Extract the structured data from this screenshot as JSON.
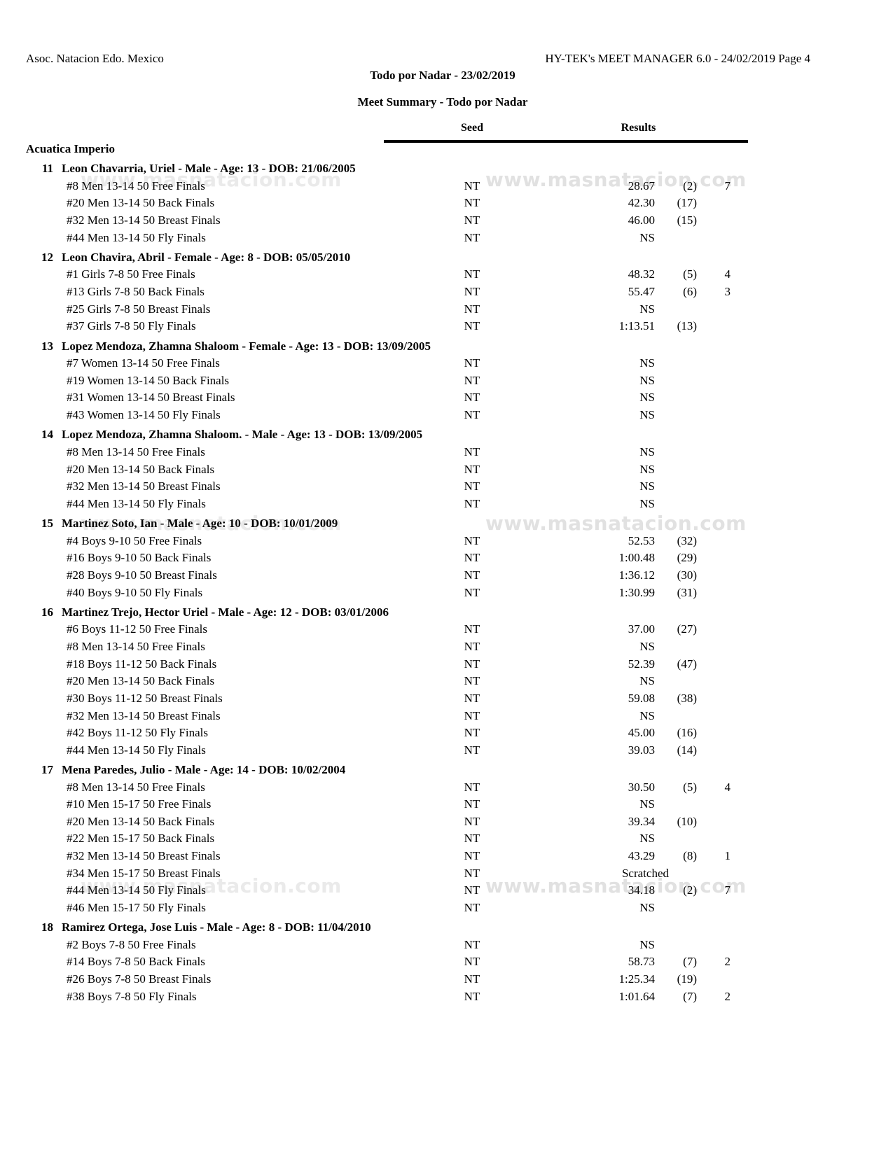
{
  "page": {
    "header_left": "Asoc. Natacion Edo. Mexico",
    "header_right": "HY-TEK's MEET MANAGER 6.0 - 24/02/2019  Page 4",
    "title": "Todo por Nadar - 23/02/2019",
    "subtitle": "Meet Summary - Todo por Nadar",
    "col_seed": "Seed",
    "col_results": "Results",
    "team": "Acuatica Imperio",
    "watermark": "www.masnatacion.com"
  },
  "swimmers": [
    {
      "num": "11",
      "name": "Leon Chavarria, Uriel - Male - Age: 13 - DOB: 21/06/2005",
      "events": [
        {
          "event": "#8 Men 13-14 50 Free Finals",
          "seed": "NT",
          "result": "28.67",
          "place": "(2)",
          "points": "7"
        },
        {
          "event": "#20 Men 13-14 50 Back Finals",
          "seed": "NT",
          "result": "42.30",
          "place": "(17)",
          "points": ""
        },
        {
          "event": "#32 Men 13-14 50 Breast Finals",
          "seed": "NT",
          "result": "46.00",
          "place": "(15)",
          "points": ""
        },
        {
          "event": "#44 Men 13-14 50 Fly Finals",
          "seed": "NT",
          "result": "NS",
          "place": "",
          "points": ""
        }
      ]
    },
    {
      "num": "12",
      "name": "Leon Chavira, Abril - Female - Age: 8 - DOB: 05/05/2010",
      "events": [
        {
          "event": "#1 Girls 7-8 50 Free Finals",
          "seed": "NT",
          "result": "48.32",
          "place": "(5)",
          "points": "4"
        },
        {
          "event": "#13 Girls 7-8 50 Back Finals",
          "seed": "NT",
          "result": "55.47",
          "place": "(6)",
          "points": "3"
        },
        {
          "event": "#25 Girls 7-8 50 Breast Finals",
          "seed": "NT",
          "result": "NS",
          "place": "",
          "points": ""
        },
        {
          "event": "#37 Girls 7-8 50 Fly Finals",
          "seed": "NT",
          "result": "1:13.51",
          "place": "(13)",
          "points": ""
        }
      ]
    },
    {
      "num": "13",
      "name": "Lopez Mendoza, Zhamna Shaloom - Female - Age: 13 - DOB: 13/09/2005",
      "events": [
        {
          "event": "#7 Women 13-14 50 Free Finals",
          "seed": "NT",
          "result": "NS",
          "place": "",
          "points": ""
        },
        {
          "event": "#19 Women 13-14 50 Back Finals",
          "seed": "NT",
          "result": "NS",
          "place": "",
          "points": ""
        },
        {
          "event": "#31 Women 13-14 50 Breast Finals",
          "seed": "NT",
          "result": "NS",
          "place": "",
          "points": ""
        },
        {
          "event": "#43 Women 13-14 50 Fly Finals",
          "seed": "NT",
          "result": "NS",
          "place": "",
          "points": ""
        }
      ]
    },
    {
      "num": "14",
      "name": "Lopez Mendoza, Zhamna Shaloom. - Male - Age: 13 - DOB: 13/09/2005",
      "events": [
        {
          "event": "#8 Men 13-14 50 Free Finals",
          "seed": "NT",
          "result": "NS",
          "place": "",
          "points": ""
        },
        {
          "event": "#20 Men 13-14 50 Back Finals",
          "seed": "NT",
          "result": "NS",
          "place": "",
          "points": ""
        },
        {
          "event": "#32 Men 13-14 50 Breast Finals",
          "seed": "NT",
          "result": "NS",
          "place": "",
          "points": ""
        },
        {
          "event": "#44 Men 13-14 50 Fly Finals",
          "seed": "NT",
          "result": "NS",
          "place": "",
          "points": ""
        }
      ]
    },
    {
      "num": "15",
      "name": "Martinez Soto, Ian - Male - Age: 10 - DOB: 10/01/2009",
      "events": [
        {
          "event": "#4 Boys 9-10 50 Free Finals",
          "seed": "NT",
          "result": "52.53",
          "place": "(32)",
          "points": ""
        },
        {
          "event": "#16 Boys 9-10 50 Back Finals",
          "seed": "NT",
          "result": "1:00.48",
          "place": "(29)",
          "points": ""
        },
        {
          "event": "#28 Boys 9-10 50 Breast Finals",
          "seed": "NT",
          "result": "1:36.12",
          "place": "(30)",
          "points": ""
        },
        {
          "event": "#40 Boys 9-10 50 Fly Finals",
          "seed": "NT",
          "result": "1:30.99",
          "place": "(31)",
          "points": ""
        }
      ]
    },
    {
      "num": "16",
      "name": "Martinez Trejo, Hector Uriel - Male - Age: 12 - DOB: 03/01/2006",
      "events": [
        {
          "event": "#6 Boys 11-12 50 Free Finals",
          "seed": "NT",
          "result": "37.00",
          "place": "(27)",
          "points": ""
        },
        {
          "event": "#8 Men 13-14 50 Free Finals",
          "seed": "NT",
          "result": "NS",
          "place": "",
          "points": ""
        },
        {
          "event": "#18 Boys 11-12 50 Back Finals",
          "seed": "NT",
          "result": "52.39",
          "place": "(47)",
          "points": ""
        },
        {
          "event": "#20 Men 13-14 50 Back Finals",
          "seed": "NT",
          "result": "NS",
          "place": "",
          "points": ""
        },
        {
          "event": "#30 Boys 11-12 50 Breast Finals",
          "seed": "NT",
          "result": "59.08",
          "place": "(38)",
          "points": ""
        },
        {
          "event": "#32 Men 13-14 50 Breast Finals",
          "seed": "NT",
          "result": "NS",
          "place": "",
          "points": ""
        },
        {
          "event": "#42 Boys 11-12 50 Fly Finals",
          "seed": "NT",
          "result": "45.00",
          "place": "(16)",
          "points": ""
        },
        {
          "event": "#44 Men 13-14 50 Fly Finals",
          "seed": "NT",
          "result": "39.03",
          "place": "(14)",
          "points": ""
        }
      ]
    },
    {
      "num": "17",
      "name": "Mena Paredes, Julio - Male - Age: 14 - DOB: 10/02/2004",
      "events": [
        {
          "event": "#8 Men 13-14 50 Free Finals",
          "seed": "NT",
          "result": "30.50",
          "place": "(5)",
          "points": "4"
        },
        {
          "event": "#10 Men 15-17 50 Free Finals",
          "seed": "NT",
          "result": "NS",
          "place": "",
          "points": ""
        },
        {
          "event": "#20 Men 13-14 50 Back Finals",
          "seed": "NT",
          "result": "39.34",
          "place": "(10)",
          "points": ""
        },
        {
          "event": "#22 Men 15-17 50 Back Finals",
          "seed": "NT",
          "result": "NS",
          "place": "",
          "points": ""
        },
        {
          "event": "#32 Men 13-14 50 Breast Finals",
          "seed": "NT",
          "result": "43.29",
          "place": "(8)",
          "points": "1"
        },
        {
          "event": "#34 Men 15-17 50 Breast Finals",
          "seed": "NT",
          "result": "Scratched",
          "place": "",
          "points": ""
        },
        {
          "event": "#44 Men 13-14 50 Fly Finals",
          "seed": "NT",
          "result": "34.18",
          "place": "(2)",
          "points": "7"
        },
        {
          "event": "#46 Men 15-17 50 Fly Finals",
          "seed": "NT",
          "result": "NS",
          "place": "",
          "points": ""
        }
      ]
    },
    {
      "num": "18",
      "name": "Ramirez Ortega, Jose Luis - Male - Age: 8 - DOB: 11/04/2010",
      "events": [
        {
          "event": "#2 Boys 7-8 50 Free Finals",
          "seed": "NT",
          "result": "NS",
          "place": "",
          "points": ""
        },
        {
          "event": "#14 Boys 7-8 50 Back Finals",
          "seed": "NT",
          "result": "58.73",
          "place": "(7)",
          "points": "2"
        },
        {
          "event": "#26 Boys 7-8 50 Breast Finals",
          "seed": "NT",
          "result": "1:25.34",
          "place": "(19)",
          "points": ""
        },
        {
          "event": "#38 Boys 7-8 50 Fly Finals",
          "seed": "NT",
          "result": "1:01.64",
          "place": "(7)",
          "points": "2"
        }
      ]
    }
  ]
}
